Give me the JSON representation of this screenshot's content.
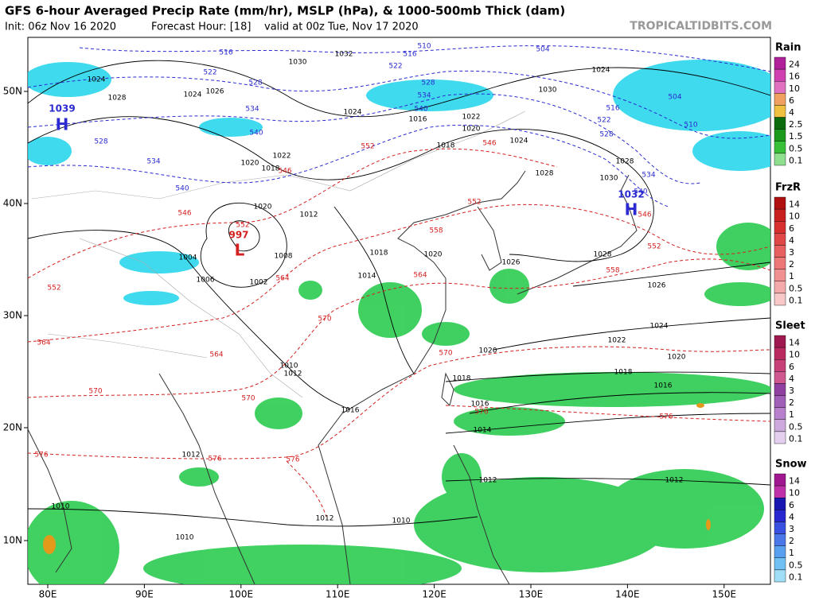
{
  "header": {
    "title": "GFS 6-hour Averaged Precip Rate (mm/hr), MSLP (hPa), & 1000-500mb Thick (dam)",
    "init": "Init: 06z Nov 16 2020",
    "forecast_hour": "Forecast Hour: [18]",
    "valid": "valid at 00z Tue, Nov 17 2020",
    "watermark": "TROPICALTIDBITS.COM"
  },
  "map": {
    "lat_labels": [
      "50N",
      "40N",
      "30N",
      "20N",
      "10N"
    ],
    "lon_labels": [
      "80E",
      "90E",
      "100E",
      "110E",
      "120E",
      "130E",
      "140E",
      "150E"
    ],
    "pressure_centers": [
      {
        "letter": "H",
        "value": "1039"
      },
      {
        "letter": "L",
        "value": "997"
      },
      {
        "letter": "H",
        "value": "1032"
      }
    ],
    "isobar_labels": [
      "1032",
      "1030",
      "1024",
      "1028",
      "1024",
      "1026",
      "1024",
      "1022",
      "1020",
      "1018",
      "1016",
      "1022",
      "1020",
      "1018",
      "1024",
      "1028",
      "1030",
      "1028",
      "1024",
      "1030",
      "1020",
      "1012",
      "1008",
      "1004",
      "1002",
      "1006",
      "1014",
      "1018",
      "1020",
      "1026",
      "1028",
      "1026",
      "1024",
      "1022",
      "1020",
      "1020",
      "1018",
      "1016",
      "1018",
      "1016",
      "1014",
      "1016",
      "1012",
      "1010",
      "1012",
      "1012",
      "1010",
      "1010",
      "1010",
      "1012",
      "1012"
    ],
    "warm_thickness_labels": [
      "546",
      "552",
      "546",
      "552",
      "558",
      "552",
      "558",
      "552",
      "546",
      "564",
      "564",
      "570",
      "570",
      "576",
      "576",
      "570",
      "570",
      "576",
      "564",
      "552",
      "564",
      "576",
      "576",
      "546"
    ],
    "cold_thickness_labels": [
      "516",
      "510",
      "504",
      "516",
      "522",
      "528",
      "534",
      "540",
      "534",
      "540",
      "528",
      "522",
      "528",
      "534",
      "540",
      "510",
      "504",
      "516",
      "522",
      "528",
      "534",
      "540"
    ]
  },
  "legend": [
    {
      "title": "Rain",
      "labels": [
        "24",
        "16",
        "10",
        "6",
        "4",
        "2.5",
        "1.5",
        "0.5",
        "0.1"
      ]
    },
    {
      "title": "FrzR",
      "labels": [
        "14",
        "10",
        "6",
        "4",
        "3",
        "2",
        "1",
        "0.5",
        "0.1"
      ]
    },
    {
      "title": "Sleet",
      "labels": [
        "14",
        "10",
        "6",
        "4",
        "3",
        "2",
        "1",
        "0.5",
        "0.1"
      ]
    },
    {
      "title": "Snow",
      "labels": [
        "14",
        "10",
        "6",
        "4",
        "3",
        "2",
        "1",
        "0.5",
        "0.1"
      ]
    }
  ]
}
